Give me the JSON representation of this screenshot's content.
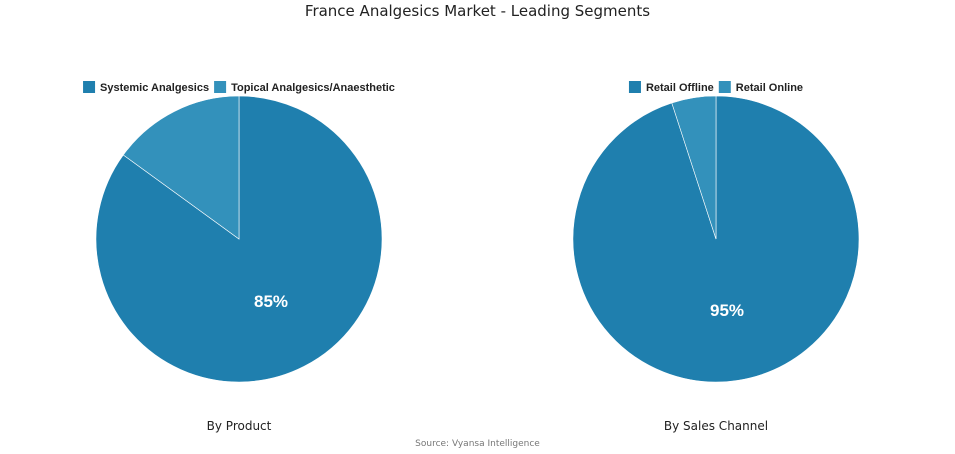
{
  "title": "France Analgesics Market - Leading Segments",
  "source": "Source: Vyansa Intelligence",
  "chart_data": [
    {
      "type": "pie",
      "title": "France Analgesics Market - Leading Segments",
      "xlabel": "By Product",
      "categories": [
        "Systemic Analgesics",
        "Topical Analgesics/Anaesthetic"
      ],
      "values": [
        85,
        15
      ],
      "data_labels": [
        "85%",
        ""
      ],
      "colors": [
        "#1f7fae",
        "#3391bb"
      ],
      "legend": "top"
    },
    {
      "type": "pie",
      "title": "France Analgesics Market - Leading Segments",
      "xlabel": "By Sales Channel",
      "categories": [
        "Retail Offline",
        "Retail Online"
      ],
      "values": [
        95,
        5
      ],
      "data_labels": [
        "95%",
        ""
      ],
      "colors": [
        "#1f7fae",
        "#3391bb"
      ],
      "legend": "top"
    }
  ]
}
